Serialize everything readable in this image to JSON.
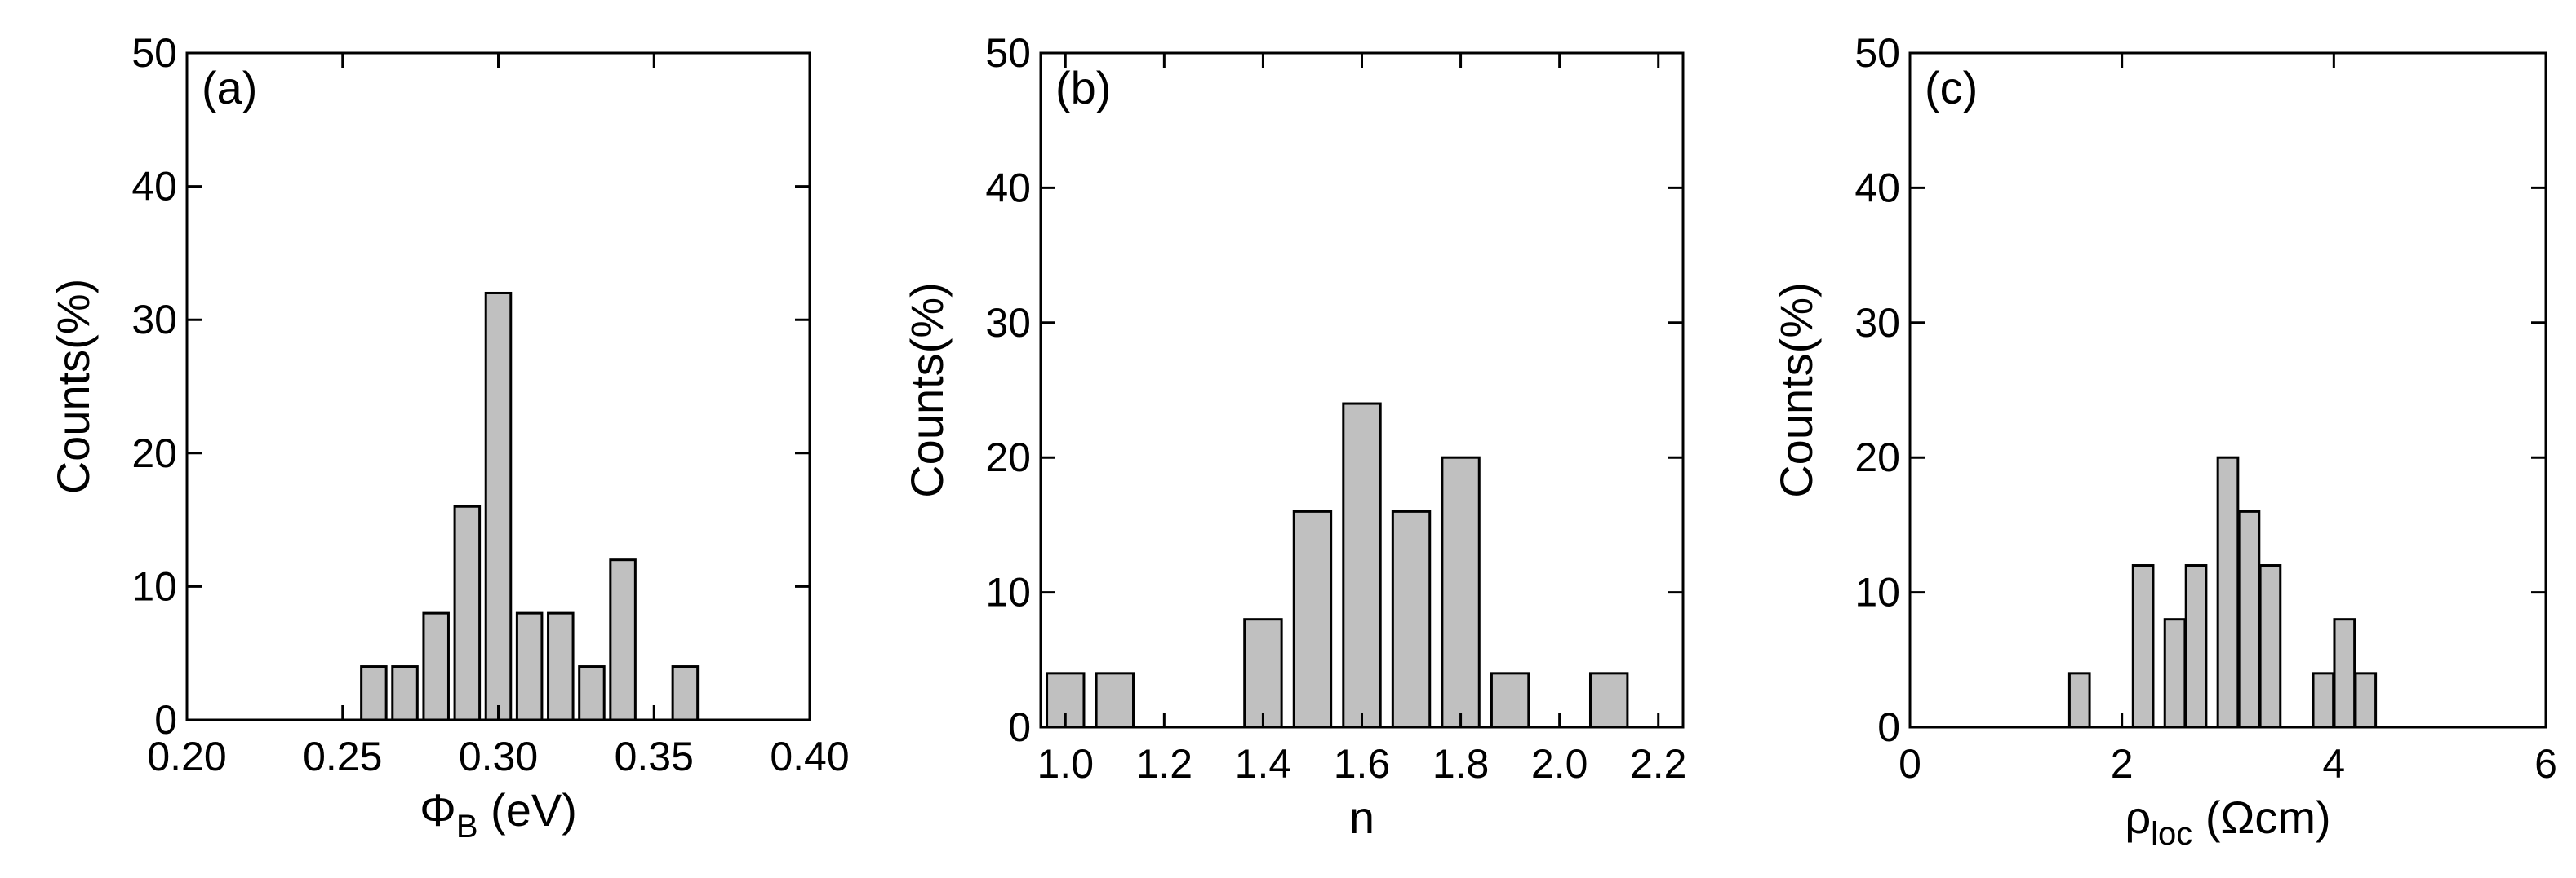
{
  "colors": {
    "bar_fill": "#c0c0c0",
    "bar_stroke": "#000000",
    "axis": "#000000",
    "background": "#ffffff"
  },
  "chart_data": [
    {
      "type": "bar",
      "panel_label": "(a)",
      "title": "",
      "xlabel_main": "Φ",
      "xlabel_sub": "B",
      "xlabel_rest": " (eV)",
      "ylabel": "Counts(%)",
      "xlim": [
        0.2,
        0.4
      ],
      "ylim": [
        0,
        50
      ],
      "xticks": [
        0.2,
        0.25,
        0.3,
        0.35,
        0.4
      ],
      "xtick_labels": [
        "0.20",
        "0.25",
        "0.30",
        "0.35",
        "0.40"
      ],
      "yticks": [
        0,
        10,
        20,
        30,
        40,
        50
      ],
      "ytick_labels": [
        "0",
        "10",
        "20",
        "30",
        "40",
        "50"
      ],
      "bar_width": 0.008,
      "x": [
        0.26,
        0.27,
        0.28,
        0.29,
        0.3,
        0.31,
        0.32,
        0.33,
        0.34,
        0.36
      ],
      "values": [
        4,
        4,
        8,
        16,
        32,
        8,
        8,
        4,
        12,
        4
      ],
      "grid": false
    },
    {
      "type": "bar",
      "panel_label": "(b)",
      "title": "",
      "xlabel_main": "n",
      "xlabel_sub": "",
      "xlabel_rest": "",
      "ylabel": "Counts(%)",
      "xlim": [
        0.95,
        2.25
      ],
      "ylim": [
        0,
        50
      ],
      "xticks": [
        1.0,
        1.2,
        1.4,
        1.6,
        1.8,
        2.0,
        2.2
      ],
      "xtick_labels": [
        "1.0",
        "1.2",
        "1.4",
        "1.6",
        "1.8",
        "2.0",
        "2.2"
      ],
      "yticks": [
        0,
        10,
        20,
        30,
        40,
        50
      ],
      "ytick_labels": [
        "0",
        "10",
        "20",
        "30",
        "40",
        "50"
      ],
      "bar_width": 0.075,
      "x": [
        1.0,
        1.1,
        1.4,
        1.5,
        1.6,
        1.7,
        1.8,
        1.9,
        2.1
      ],
      "values": [
        4,
        4,
        8,
        16,
        24,
        16,
        20,
        4,
        4
      ],
      "grid": false
    },
    {
      "type": "bar",
      "panel_label": "(c)",
      "title": "",
      "xlabel_main": "ρ",
      "xlabel_sub": "loc",
      "xlabel_rest": " (Ωcm)",
      "ylabel": "Counts(%)",
      "xlim": [
        0,
        6
      ],
      "ylim": [
        0,
        50
      ],
      "xticks": [
        0,
        2,
        4,
        6
      ],
      "xtick_labels": [
        "0",
        "2",
        "4",
        "6"
      ],
      "yticks": [
        0,
        10,
        20,
        30,
        40,
        50
      ],
      "ytick_labels": [
        "0",
        "10",
        "20",
        "30",
        "40",
        "50"
      ],
      "bar_width": 0.19,
      "x": [
        1.6,
        2.2,
        2.5,
        2.7,
        3.0,
        3.2,
        3.4,
        3.9,
        4.1,
        4.3
      ],
      "values": [
        4,
        12,
        8,
        12,
        20,
        16,
        12,
        4,
        8,
        4
      ],
      "grid": false
    }
  ]
}
